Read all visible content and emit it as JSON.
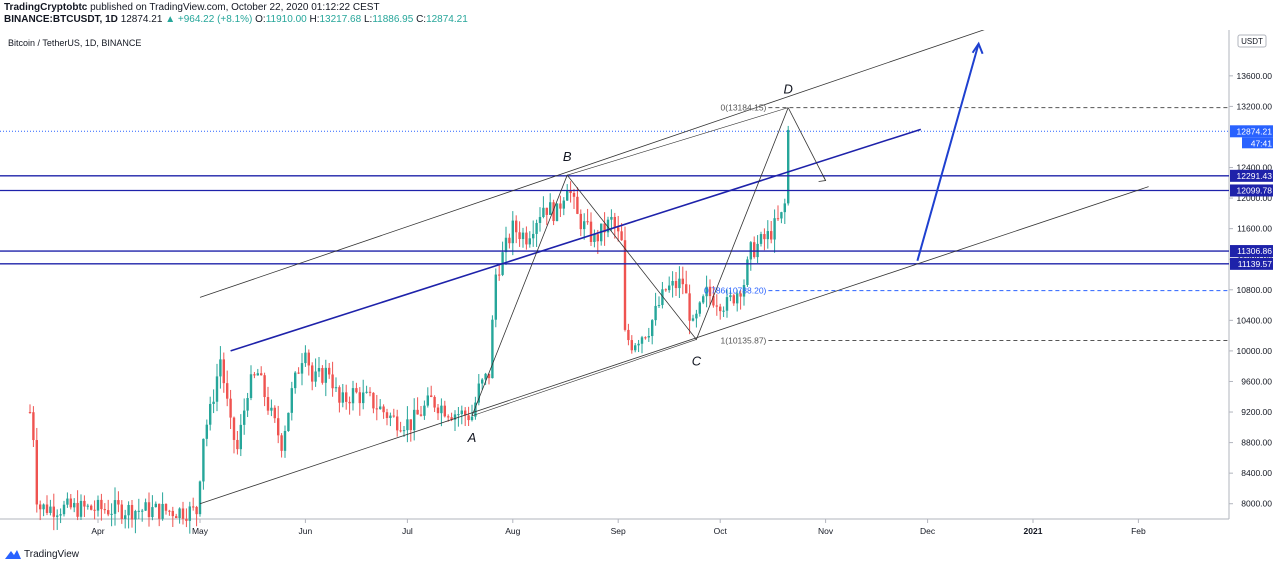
{
  "header": {
    "publisher": "TradingCryptobtc",
    "published_text": "published on TradingView.com, October 22, 2020 01:12:22 CEST",
    "symbol": "BINANCE:BTCUSDT, 1D",
    "last": "12874.21",
    "change": "▲ +964.22 (+8.1%)",
    "o_label": "O:",
    "o": "11910.00",
    "h_label": "H:",
    "h": "13217.68",
    "l_label": "L:",
    "l": "11886.95",
    "c_label": "C:",
    "c": "12874.21"
  },
  "chart_title": "Bitcoin / TetherUS, 1D, BINANCE",
  "currency_badge": "USDT",
  "footer": {
    "brand": "TradingView"
  },
  "colors": {
    "up": "#26a69a",
    "down": "#ef5350",
    "line_blue": "#1e22aa",
    "arrow_blue": "#1e40d0",
    "fib_blue": "#2962ff"
  },
  "chart_data": {
    "type": "candlestick",
    "title": "Bitcoin / TetherUS, 1D, BINANCE",
    "ylim": [
      7800,
      14200
    ],
    "grid": false,
    "y_ticks": [
      8000,
      8400,
      8800,
      9200,
      9600,
      10000,
      10400,
      10800,
      11200,
      11600,
      12000,
      12400,
      13200,
      13600
    ],
    "y_tick_labels": [
      "8000.00",
      "8400.00",
      "8800.00",
      "9200.00",
      "9600.00",
      "10000.00",
      "10400.00",
      "10800.00",
      "11200.00",
      "11600.00",
      "12000.00",
      "12400.00",
      "13200.00",
      "13600.00"
    ],
    "x_labels": [
      {
        "label": "Apr",
        "date": "2020-04-01"
      },
      {
        "label": "May",
        "date": "2020-05-01"
      },
      {
        "label": "Jun",
        "date": "2020-06-01"
      },
      {
        "label": "Jul",
        "date": "2020-07-01"
      },
      {
        "label": "Aug",
        "date": "2020-08-01"
      },
      {
        "label": "Sep",
        "date": "2020-09-01"
      },
      {
        "label": "Oct",
        "date": "2020-10-01"
      },
      {
        "label": "Nov",
        "date": "2020-11-01"
      },
      {
        "label": "Dec",
        "date": "2020-12-01"
      },
      {
        "label": "2021",
        "date": "2021-01-01"
      },
      {
        "label": "Feb",
        "date": "2021-02-01"
      }
    ],
    "price_labels": [
      {
        "value": 12874.21,
        "text": "12874.21",
        "sub": "47:41",
        "color": "#2962ff"
      },
      {
        "value": 12291.43,
        "text": "12291.43",
        "color": "#1e22aa"
      },
      {
        "value": 12099.78,
        "text": "12099.78",
        "color": "#1e22aa"
      },
      {
        "value": 11306.86,
        "text": "11306.86",
        "color": "#1e22aa"
      },
      {
        "value": 11139.57,
        "text": "11139.57",
        "color": "#1e22aa"
      }
    ],
    "horizontal_lines": [
      12291.43,
      12099.78,
      11306.86,
      11139.57
    ],
    "last_price": 12874.21,
    "fib_levels": [
      {
        "label": "0(13184.15)",
        "value": 13184.15,
        "color": "#555555"
      },
      {
        "label": "0.786(10788.20)",
        "value": 10788.2,
        "color": "#2962ff"
      },
      {
        "label": "1(10135.87)",
        "value": 10135.87,
        "color": "#555555"
      }
    ],
    "pattern_points": [
      {
        "label": "A",
        "date": "2020-07-20",
        "price": 9150
      },
      {
        "label": "B",
        "date": "2020-08-17",
        "price": 12300
      },
      {
        "label": "C",
        "date": "2020-09-24",
        "price": 10150
      },
      {
        "label": "D",
        "date": "2020-10-21",
        "price": 13184
      }
    ],
    "channel_lines": [
      {
        "p1": {
          "date": "2020-05-01",
          "price": 8000
        },
        "p2": {
          "date": "2021-02-04",
          "price": 12150
        }
      },
      {
        "p1": {
          "date": "2020-05-01",
          "price": 10700
        },
        "p2": {
          "date": "2020-12-24",
          "price": 14300
        }
      }
    ],
    "trend_line": {
      "p1": {
        "date": "2020-05-10",
        "price": 10000
      },
      "p2": {
        "date": "2020-11-29",
        "price": 12900
      }
    },
    "projection_arrow": {
      "p1": {
        "date": "2020-11-28",
        "price": 11180
      },
      "p2": {
        "date": "2020-12-16",
        "price": 14020
      }
    },
    "small_arrow": {
      "p1": {
        "date": "2020-10-21",
        "price": 13184
      },
      "p2": {
        "date": "2020-11-01",
        "price": 12230
      }
    },
    "price_path": [
      [
        "2020-03-12",
        9200
      ],
      [
        "2020-03-13",
        8900
      ],
      [
        "2020-03-14",
        8100
      ],
      [
        "2020-03-15",
        7950
      ],
      [
        "2020-04-30",
        7900
      ],
      [
        "2020-05-02",
        8900
      ],
      [
        "2020-05-04",
        9200
      ],
      [
        "2020-05-07",
        9900
      ],
      [
        "2020-05-10",
        9000
      ],
      [
        "2020-05-12",
        8700
      ],
      [
        "2020-05-15",
        9500
      ],
      [
        "2020-05-18",
        9700
      ],
      [
        "2020-05-22",
        9150
      ],
      [
        "2020-05-25",
        8800
      ],
      [
        "2020-05-28",
        9450
      ],
      [
        "2020-06-01",
        10100
      ],
      [
        "2020-06-03",
        9600
      ],
      [
        "2020-06-08",
        9750
      ],
      [
        "2020-06-11",
        9300
      ],
      [
        "2020-06-15",
        9450
      ],
      [
        "2020-06-20",
        9350
      ],
      [
        "2020-06-27",
        9100
      ],
      [
        "2020-07-02",
        9050
      ],
      [
        "2020-07-08",
        9350
      ],
      [
        "2020-07-14",
        9200
      ],
      [
        "2020-07-20",
        9150
      ],
      [
        "2020-07-22",
        9500
      ],
      [
        "2020-07-25",
        9700
      ],
      [
        "2020-07-27",
        11000
      ],
      [
        "2020-08-01",
        11600
      ],
      [
        "2020-08-05",
        11500
      ],
      [
        "2020-08-10",
        11900
      ],
      [
        "2020-08-14",
        11800
      ],
      [
        "2020-08-17",
        12200
      ],
      [
        "2020-08-20",
        11750
      ],
      [
        "2020-08-25",
        11450
      ],
      [
        "2020-08-30",
        11700
      ],
      [
        "2020-09-02",
        11400
      ],
      [
        "2020-09-03",
        10200
      ],
      [
        "2020-09-05",
        10100
      ],
      [
        "2020-09-10",
        10300
      ],
      [
        "2020-09-15",
        10800
      ],
      [
        "2020-09-20",
        10900
      ],
      [
        "2020-09-23",
        10300
      ],
      [
        "2020-09-27",
        10750
      ],
      [
        "2020-10-03",
        10600
      ],
      [
        "2020-10-08",
        10900
      ],
      [
        "2020-10-10",
        11300
      ],
      [
        "2020-10-15",
        11500
      ],
      [
        "2020-10-19",
        11750
      ],
      [
        "2020-10-20",
        11910
      ],
      [
        "2020-10-21",
        12874
      ]
    ]
  }
}
